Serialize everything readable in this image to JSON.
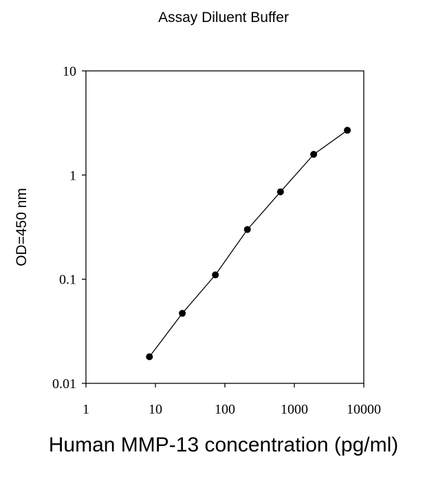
{
  "chart_data": {
    "type": "line",
    "title": "Assay Diluent Buffer",
    "xlabel": "Human MMP-13 concentration (pg/ml)",
    "ylabel": "OD=450 nm",
    "xscale": "log",
    "yscale": "log",
    "xlim": [
      1,
      10000
    ],
    "ylim": [
      0.01,
      10
    ],
    "xticks": [
      "1",
      "10",
      "100",
      "1000",
      "10000"
    ],
    "yticks": [
      "0.01",
      "0.1",
      "1",
      "10"
    ],
    "grid": false,
    "legend": null,
    "series": [
      {
        "name": "Assay Diluent Buffer",
        "marker": "filled-circle",
        "color": "#000000",
        "x": [
          8.2,
          24.4,
          73,
          211,
          632,
          1900,
          5800
        ],
        "y": [
          0.018,
          0.047,
          0.11,
          0.3,
          0.69,
          1.58,
          2.69
        ]
      }
    ]
  }
}
